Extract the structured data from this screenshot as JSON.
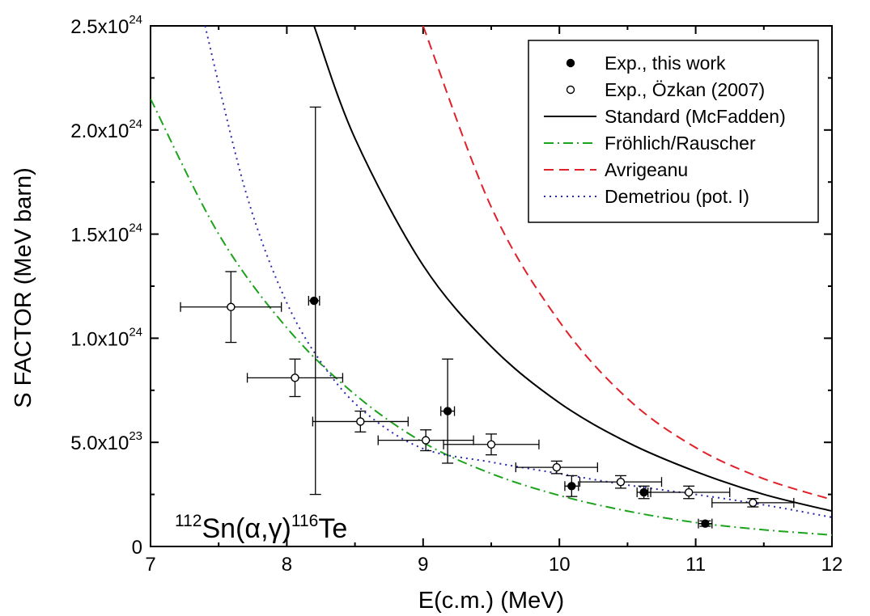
{
  "chart_data": {
    "type": "scatter",
    "xlabel": "E(c.m.) (MeV)",
    "ylabel": "S FACTOR (MeV barn)",
    "xlim": [
      7,
      12
    ],
    "ylim": [
      0,
      2.5e+24
    ],
    "xticks": [
      {
        "value": 7,
        "label": "7"
      },
      {
        "value": 8,
        "label": "8"
      },
      {
        "value": 9,
        "label": "9"
      },
      {
        "value": 10,
        "label": "10"
      },
      {
        "value": 11,
        "label": "11"
      },
      {
        "value": 12,
        "label": "12"
      }
    ],
    "yticks": [
      {
        "value": 0,
        "mantissa": "0",
        "exp": ""
      },
      {
        "value": 5e+23,
        "mantissa": "5.0x10",
        "exp": "23"
      },
      {
        "value": 1e+24,
        "mantissa": "1.0x10",
        "exp": "24"
      },
      {
        "value": 1.5e+24,
        "mantissa": "1.5x10",
        "exp": "24"
      },
      {
        "value": 2e+24,
        "mantissa": "2.0x10",
        "exp": "24"
      },
      {
        "value": 2.5e+24,
        "mantissa": "2.5x10",
        "exp": "24"
      }
    ],
    "annotation": {
      "pre_sup": "112",
      "base1": "Sn(",
      "alpha": "α",
      "comma": ",",
      "gamma": "γ",
      "close": ")",
      "mid_sup": "116",
      "base2": "Te"
    },
    "legend_position": "top-right",
    "series": [
      {
        "name": "Exp., this work",
        "kind": "points",
        "marker": "filled-circle",
        "color": "#000000",
        "points": [
          {
            "x": 8.2,
            "y": 1.18e+24,
            "xerr": 0.04,
            "yerr": 0.0
          },
          {
            "x": 8.21,
            "y": 1.18e+24,
            "xerr": 0.0,
            "yerr": 9.3e+23
          },
          {
            "x": 9.18,
            "y": 6.5e+23,
            "xerr": 0.05,
            "yerr": 2.5e+23
          },
          {
            "x": 10.09,
            "y": 2.9e+23,
            "xerr": 0.05,
            "yerr": 5e+22
          },
          {
            "x": 10.62,
            "y": 2.6e+23,
            "xerr": 0.05,
            "yerr": 3e+22
          },
          {
            "x": 11.07,
            "y": 1.1e+23,
            "xerr": 0.05,
            "yerr": 1.3e+22
          }
        ]
      },
      {
        "name": "Exp., Özkan (2007)",
        "kind": "points",
        "marker": "open-circle",
        "color": "#000000",
        "points": [
          {
            "x": 7.59,
            "y": 1.15e+24,
            "xerr": 0.37,
            "yerr": 1.7e+23
          },
          {
            "x": 8.06,
            "y": 8.1e+23,
            "xerr": 0.35,
            "yerr": 9e+22
          },
          {
            "x": 8.54,
            "y": 6e+23,
            "xerr": 0.35,
            "yerr": 5e+22
          },
          {
            "x": 9.02,
            "y": 5.1e+23,
            "xerr": 0.35,
            "yerr": 5e+22
          },
          {
            "x": 9.5,
            "y": 4.9e+23,
            "xerr": 0.35,
            "yerr": 5e+22
          },
          {
            "x": 9.98,
            "y": 3.8e+23,
            "xerr": 0.3,
            "yerr": 3e+22
          },
          {
            "x": 10.45,
            "y": 3.1e+23,
            "xerr": 0.3,
            "yerr": 3e+22
          },
          {
            "x": 10.95,
            "y": 2.6e+23,
            "xerr": 0.3,
            "yerr": 3e+22
          },
          {
            "x": 11.42,
            "y": 2.1e+23,
            "xerr": 0.3,
            "yerr": 2e+22
          }
        ]
      },
      {
        "name": "Standard (McFadden)",
        "kind": "line",
        "dash": "solid",
        "color": "#000000",
        "x": [
          8.2,
          8.5,
          9.0,
          9.5,
          10.0,
          10.5,
          11.0,
          11.5,
          12.0
        ],
        "y": [
          2.5e+24,
          1.96e+24,
          1.35e+24,
          9.6e+23,
          6.9e+23,
          5e+23,
          3.6e+23,
          2.5e+23,
          1.7e+23
        ]
      },
      {
        "name": "Fröhlich/Rauscher",
        "kind": "line",
        "dash": "dashdot",
        "color": "#1ca31c",
        "x": [
          7.0,
          7.5,
          8.0,
          8.5,
          9.0,
          9.5,
          10.0,
          10.5,
          11.0,
          11.5,
          12.0
        ],
        "y": [
          2.15e+24,
          1.5e+24,
          1.05e+24,
          7.3e+23,
          5e+23,
          3.5e+23,
          2.45e+23,
          1.7e+23,
          1.15e+23,
          8e+22,
          5.5e+22
        ]
      },
      {
        "name": "Avrigeanu",
        "kind": "line",
        "dash": "dashed",
        "color": "#e0202a",
        "x": [
          9.0,
          9.5,
          10.0,
          10.5,
          11.0,
          11.5,
          12.0
        ],
        "y": [
          2.5e+24,
          1.63e+24,
          1.08e+24,
          7.1e+23,
          4.75e+23,
          3.25e+23,
          2.25e+23
        ]
      },
      {
        "name": "Demetriou (pot. I)",
        "kind": "line",
        "dash": "dotted",
        "color": "#2a2ab0",
        "x": [
          7.4,
          7.7,
          8.0,
          8.3,
          8.6,
          9.0,
          9.5,
          10.0,
          10.5,
          11.0,
          11.5,
          12.0
        ],
        "y": [
          2.5e+24,
          1.7e+24,
          1.17e+24,
          8.4e+23,
          6.3e+23,
          4.7e+23,
          4.05e+23,
          3.5e+23,
          2.95e+23,
          2.5e+23,
          2e+23,
          1.4e+23
        ]
      }
    ]
  }
}
